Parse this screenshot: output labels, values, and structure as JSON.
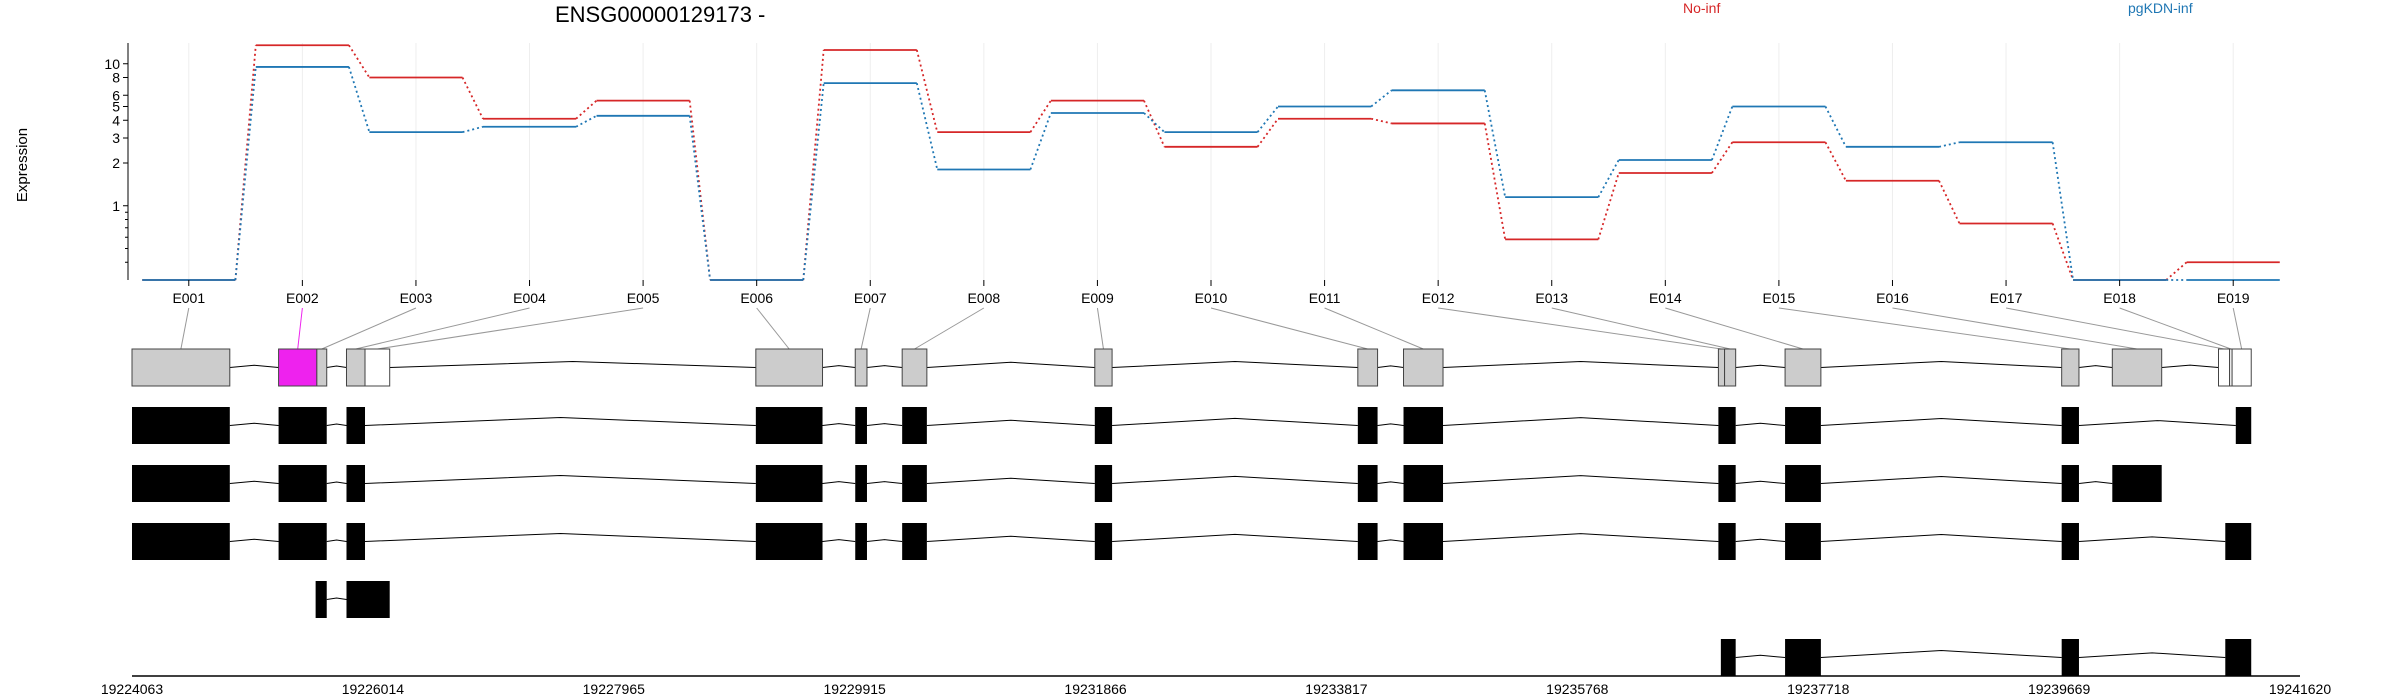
{
  "chart_data": {
    "type": "line",
    "title": "ENSG00000129173 -",
    "ylabel": "Expression",
    "xlabel": "",
    "y_scale": "log",
    "y_ticks": [
      1,
      2,
      3,
      4,
      5,
      6,
      8,
      10
    ],
    "ylim": [
      0.3,
      14
    ],
    "grid": "vertical, light",
    "legend_placement": "top",
    "categories": [
      "E001",
      "E002",
      "E003",
      "E004",
      "E005",
      "E006",
      "E007",
      "E008",
      "E009",
      "E010",
      "E011",
      "E012",
      "E013",
      "E014",
      "E015",
      "E016",
      "E017",
      "E018",
      "E019"
    ],
    "series": [
      {
        "name": "No-inf",
        "color": "#d62728",
        "values": [
          0.3,
          13.5,
          8.0,
          4.1,
          5.5,
          0.3,
          12.5,
          3.3,
          5.5,
          2.6,
          4.1,
          3.8,
          0.58,
          1.7,
          2.8,
          1.5,
          0.75,
          0.3,
          0.4
        ]
      },
      {
        "name": "pgKDN-inf",
        "color": "#1f77b4",
        "values": [
          0.3,
          9.5,
          3.3,
          3.6,
          4.3,
          0.3,
          7.3,
          1.8,
          4.5,
          3.3,
          5.0,
          6.5,
          1.15,
          2.1,
          5.0,
          2.6,
          2.8,
          0.3,
          0.3
        ]
      }
    ],
    "genome_coordinates": [
      "19224063",
      "19226014",
      "19227965",
      "19229915",
      "19231866",
      "19233817",
      "19235768",
      "19237718",
      "19239669",
      "19241620"
    ],
    "genome_range": [
      19224063,
      19241620
    ],
    "highlighted_exon": "E002",
    "highlight_color": "#ee22ee",
    "exon_fill": "#cccccc",
    "exons": [
      {
        "start": 19224063,
        "end": 19224855
      },
      {
        "start": 19225250,
        "end": 19225560
      },
      {
        "start": 19225560,
        "end": 19225640
      },
      {
        "start": 19225800,
        "end": 19225950
      },
      {
        "start": 19225950,
        "end": 19226150
      },
      {
        "start": 19229115,
        "end": 19229655
      },
      {
        "start": 19229920,
        "end": 19230015
      },
      {
        "start": 19230300,
        "end": 19230500
      },
      {
        "start": 19231860,
        "end": 19232000
      },
      {
        "start": 19233990,
        "end": 19234150
      },
      {
        "start": 19234360,
        "end": 19234680
      },
      {
        "start": 19236910,
        "end": 19236960
      },
      {
        "start": 19236960,
        "end": 19237050
      },
      {
        "start": 19237450,
        "end": 19237740
      },
      {
        "start": 19239690,
        "end": 19239830
      },
      {
        "start": 19240100,
        "end": 19240500
      },
      {
        "start": 19240960,
        "end": 19241050
      },
      {
        "start": 19241050,
        "end": 19241070
      },
      {
        "start": 19241070,
        "end": 19241225
      }
    ],
    "transcripts": [
      [
        [
          19224063,
          19224855
        ],
        [
          19225250,
          19225640
        ],
        [
          19225800,
          19225950
        ],
        [
          19229115,
          19229655
        ],
        [
          19229920,
          19230015
        ],
        [
          19230300,
          19230500
        ],
        [
          19231860,
          19232000
        ],
        [
          19233990,
          19234150
        ],
        [
          19234360,
          19234680
        ],
        [
          19236910,
          19237050
        ],
        [
          19237450,
          19237740
        ],
        [
          19239690,
          19239830
        ],
        [
          19241100,
          19241225
        ]
      ],
      [
        [
          19224063,
          19224855
        ],
        [
          19225250,
          19225640
        ],
        [
          19225800,
          19225950
        ],
        [
          19229115,
          19229655
        ],
        [
          19229920,
          19230015
        ],
        [
          19230300,
          19230500
        ],
        [
          19231860,
          19232000
        ],
        [
          19233990,
          19234150
        ],
        [
          19234360,
          19234680
        ],
        [
          19236910,
          19237050
        ],
        [
          19237450,
          19237740
        ],
        [
          19239690,
          19239830
        ],
        [
          19240100,
          19240500
        ]
      ],
      [
        [
          19224063,
          19224855
        ],
        [
          19225250,
          19225640
        ],
        [
          19225800,
          19225950
        ],
        [
          19229115,
          19229655
        ],
        [
          19229920,
          19230015
        ],
        [
          19230300,
          19230500
        ],
        [
          19231860,
          19232000
        ],
        [
          19233990,
          19234150
        ],
        [
          19234360,
          19234680
        ],
        [
          19236910,
          19237050
        ],
        [
          19237450,
          19237740
        ],
        [
          19239690,
          19239830
        ],
        [
          19241015,
          19241225
        ]
      ],
      [
        [
          19225550,
          19225640
        ],
        [
          19225800,
          19226150
        ]
      ],
      [
        [
          19236930,
          19237050
        ],
        [
          19237450,
          19237740
        ],
        [
          19239690,
          19239830
        ],
        [
          19241015,
          19241225
        ]
      ]
    ]
  }
}
